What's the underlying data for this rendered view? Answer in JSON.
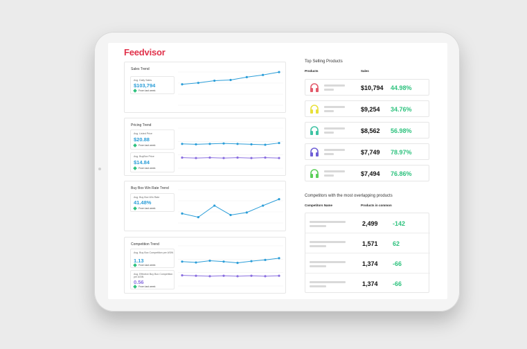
{
  "brand": {
    "name": "Feedvisor",
    "color": "#e0314a"
  },
  "colors": {
    "blue": "#2a9dd8",
    "purple": "#8a6fe0",
    "green": "#2ec27e"
  },
  "trends": {
    "sales": {
      "title": "Sales Trend",
      "kpis": [
        {
          "label": "Avg. Daily Sales",
          "value": "$103,794",
          "change": "From last week"
        }
      ],
      "series": [
        {
          "color": "#2a9dd8",
          "values": [
            62,
            66,
            72,
            74,
            82,
            88,
            96
          ]
        }
      ]
    },
    "pricing": {
      "title": "Pricing Trend",
      "kpis": [
        {
          "label": "Avg. Listed Price",
          "value": "$20.88",
          "change": "From last week"
        },
        {
          "label": "Avg. BuyBox Price",
          "value": "$14.84",
          "change": "From last week"
        }
      ],
      "series": [
        {
          "color": "#2a9dd8",
          "values": [
            60,
            59,
            60,
            61,
            60,
            59,
            58,
            62
          ]
        },
        {
          "color": "#8a6fe0",
          "values": [
            28,
            27,
            28,
            27,
            28,
            27,
            28,
            27
          ]
        }
      ]
    },
    "buybox": {
      "title": "Buy Box Win Rate Trend",
      "kpis": [
        {
          "label": "Avg. Buy Box Win Rate",
          "value": "41.48%",
          "change": "From last week"
        }
      ],
      "series": [
        {
          "color": "#2a9dd8",
          "values": [
            30,
            20,
            52,
            26,
            33,
            52,
            70
          ]
        }
      ]
    },
    "competition": {
      "title": "Competition Trend",
      "kpis": [
        {
          "label": "Avg. Buy Box Competition per ASIN",
          "value": "1.13",
          "change": "From last week"
        },
        {
          "label": "Avg. Effective Buy Box Competition per ASIN",
          "value": "0.56",
          "change": "From last week"
        }
      ],
      "series": [
        {
          "color": "#2a9dd8",
          "values": [
            60,
            58,
            62,
            60,
            57,
            61,
            64,
            68
          ]
        },
        {
          "color": "#8a6fe0",
          "values": [
            28,
            27,
            26,
            27,
            26,
            27,
            26,
            27
          ]
        }
      ]
    }
  },
  "top_products": {
    "title": "Top Selling Products",
    "col_products": "Products",
    "col_sales": "Sales",
    "items": [
      {
        "icon": "headphones-icon",
        "color": "#e35b6b",
        "sales": "$10,794",
        "pct": "44.98%"
      },
      {
        "icon": "headphones-icon",
        "color": "#e8e03a",
        "sales": "$9,254",
        "pct": "34.76%"
      },
      {
        "icon": "headphones-icon",
        "color": "#3fc3a3",
        "sales": "$8,562",
        "pct": "56.98%"
      },
      {
        "icon": "headphones-icon",
        "color": "#6f5fd6",
        "sales": "$7,749",
        "pct": "78.97%"
      },
      {
        "icon": "headphones-icon",
        "color": "#5ccf5a",
        "sales": "$7,494",
        "pct": "76.86%"
      }
    ]
  },
  "competitors": {
    "title": "Competitors with the most overlapping products",
    "col_name": "Competitors Name",
    "col_common": "Products in common",
    "items": [
      {
        "count": "2,499",
        "delta": "-142"
      },
      {
        "count": "1,571",
        "delta": "62"
      },
      {
        "count": "1,374",
        "delta": "-66"
      },
      {
        "count": "1,374",
        "delta": "-66"
      }
    ]
  }
}
